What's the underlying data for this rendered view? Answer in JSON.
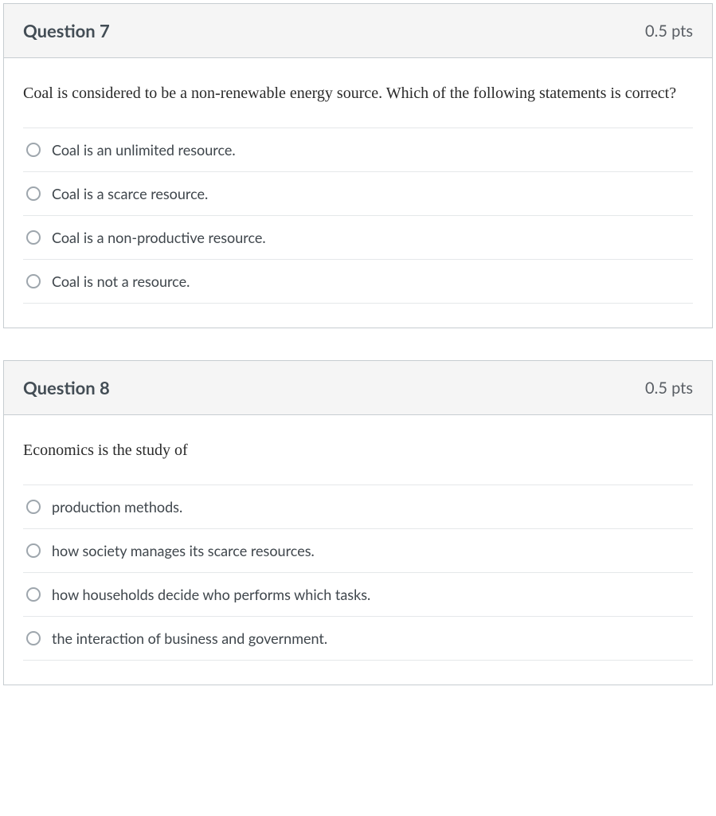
{
  "colors": {
    "card_border": "#c7cdd1",
    "header_bg": "#f5f5f5",
    "title_text": "#434d55",
    "points_text": "#595e64",
    "prompt_text": "#2a2a2a",
    "option_text": "#3f464c",
    "option_divider": "#e5e8ea",
    "radio_border": "#9ea6ad",
    "page_bg": "#ffffff"
  },
  "questions": [
    {
      "title": "Question 7",
      "points": "0.5 pts",
      "prompt": "Coal is considered to be a non-renewable energy source. Which of the following statements is correct?",
      "options": [
        "Coal is an unlimited resource.",
        "Coal is a scarce resource.",
        "Coal is a non-productive resource.",
        "Coal is not a resource."
      ]
    },
    {
      "title": "Question 8",
      "points": "0.5 pts",
      "prompt": "Economics is the study of",
      "options": [
        "production methods.",
        "how society manages its scarce resources.",
        "how households decide who performs which tasks.",
        "the interaction of business and government."
      ]
    }
  ]
}
